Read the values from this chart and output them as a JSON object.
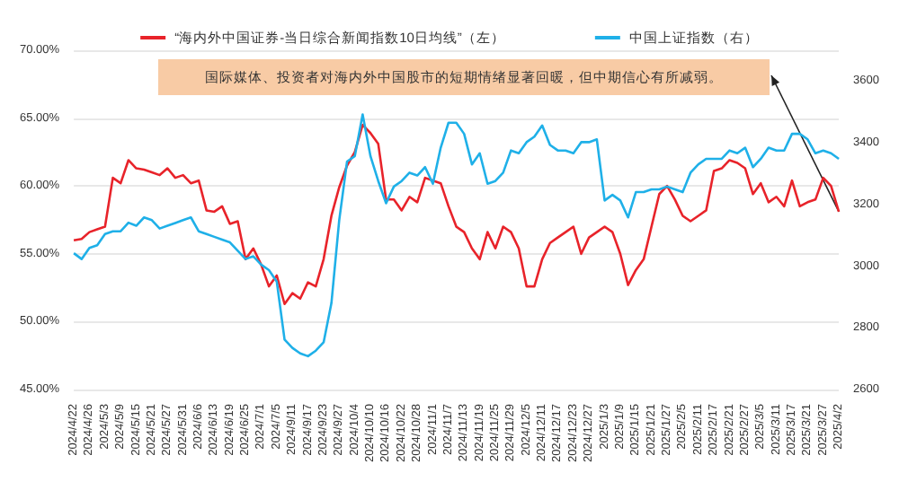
{
  "chart_data": {
    "type": "line",
    "categories": [
      "2024/4/22",
      null,
      "2024/4/26",
      null,
      "2024/5/3",
      null,
      "2024/5/9",
      null,
      "2024/5/15",
      null,
      "2024/5/21",
      null,
      "2024/5/27",
      null,
      "2024/5/31",
      null,
      "2024/6/6",
      null,
      "2024/6/13",
      null,
      "2024/6/19",
      null,
      "2024/6/25",
      null,
      "2024/7/1",
      null,
      "2024/7/5",
      null,
      "2024/9/11",
      null,
      "2024/9/17",
      null,
      "2024/9/23",
      null,
      "2024/9/27",
      null,
      "2024/10/4",
      null,
      "2024/10/10",
      null,
      "2024/10/16",
      null,
      "2024/10/22",
      null,
      "2024/10/28",
      null,
      "2024/11/1",
      null,
      "2024/11/7",
      null,
      "2024/11/13",
      null,
      "2024/11/19",
      null,
      "2024/11/25",
      null,
      "2024/11/29",
      null,
      "2024/12/5",
      null,
      "2024/12/11",
      null,
      "2024/12/17",
      null,
      "2024/12/23",
      null,
      "2024/12/27",
      null,
      "2025/1/3",
      null,
      "2025/1/9",
      null,
      "2025/1/15",
      null,
      "2025/1/21",
      null,
      "2025/1/27",
      null,
      "2025/2/5",
      null,
      "2025/2/11",
      null,
      "2025/2/17",
      null,
      "2025/2/21",
      null,
      "2025/2/27",
      null,
      "2025/3/5",
      null,
      "2025/3/11",
      null,
      "2025/3/17",
      null,
      "2025/3/21",
      null,
      "2025/3/27",
      null,
      "2025/4/2"
    ],
    "series": [
      {
        "name": "“海内外中国证券-当日综合新闻指数10日均线”（左）",
        "color": "#e8232a",
        "values": [
          56.0,
          56.1,
          56.6,
          56.8,
          57.0,
          60.6,
          60.2,
          61.9,
          61.3,
          61.2,
          61.0,
          60.8,
          61.3,
          60.6,
          60.8,
          60.2,
          60.4,
          58.2,
          58.1,
          58.5,
          57.2,
          57.4,
          54.6,
          55.4,
          54.2,
          52.6,
          53.4,
          51.3,
          52.1,
          51.7,
          52.9,
          52.6,
          54.6,
          57.8,
          59.9,
          61.5,
          62.5,
          64.5,
          63.9,
          63.1,
          59.0,
          59.0,
          58.2,
          59.2,
          58.8,
          60.6,
          60.4,
          60.2,
          58.5,
          57.0,
          56.6,
          55.4,
          54.6,
          56.6,
          55.4,
          57.0,
          56.6,
          55.4,
          52.6,
          52.6,
          54.6,
          55.8,
          56.2,
          56.6,
          57.0,
          55.0,
          56.2,
          56.6,
          57.0,
          56.6,
          55.0,
          52.7,
          53.8,
          54.6,
          57.0,
          59.4,
          60.0,
          59.0,
          57.8,
          57.4,
          57.8,
          58.2,
          61.1,
          61.3,
          61.9,
          61.7,
          61.3,
          59.4,
          60.2,
          58.8,
          59.2,
          58.5,
          60.4,
          58.5,
          58.8,
          59.0,
          60.6,
          60.0,
          58.1
        ]
      },
      {
        "name": "中国上证指数（右）",
        "color": "#1fb0e8",
        "axis": "y2",
        "values": [
          3042,
          3023,
          3059,
          3068,
          3104,
          3113,
          3113,
          3141,
          3131,
          3158,
          3149,
          3122,
          3131,
          3140,
          3149,
          3158,
          3113,
          3104,
          3095,
          3086,
          3077,
          3050,
          3023,
          3032,
          3005,
          2987,
          2950,
          2762,
          2735,
          2717,
          2708,
          2726,
          2753,
          2880,
          3149,
          3339,
          3357,
          3492,
          3357,
          3276,
          3204,
          3258,
          3276,
          3303,
          3294,
          3321,
          3267,
          3384,
          3465,
          3465,
          3429,
          3330,
          3366,
          3267,
          3276,
          3303,
          3375,
          3366,
          3402,
          3420,
          3456,
          3393,
          3375,
          3375,
          3366,
          3402,
          3402,
          3411,
          3213,
          3231,
          3213,
          3158,
          3240,
          3240,
          3249,
          3249,
          3258,
          3249,
          3240,
          3303,
          3330,
          3348,
          3348,
          3348,
          3375,
          3366,
          3384,
          3321,
          3348,
          3384,
          3375,
          3375,
          3429,
          3429,
          3411,
          3366,
          3375,
          3366,
          3348
        ]
      }
    ],
    "ylim": [
      45,
      70
    ],
    "yticks": [
      {
        "value": 45,
        "label": "45.00%"
      },
      {
        "value": 50,
        "label": "50.00%"
      },
      {
        "value": 55,
        "label": "55.00%"
      },
      {
        "value": 60,
        "label": "60.00%"
      },
      {
        "value": 65,
        "label": "65.00%"
      },
      {
        "value": 70,
        "label": "70.00%"
      }
    ],
    "y2lim": [
      2600,
      3700
    ],
    "y2ticks": [
      2600,
      2800,
      3000,
      3200,
      3400,
      3600
    ],
    "grid": "y",
    "legend": "top",
    "marker": "none",
    "line_style": "solid",
    "annotations": [
      "国际媒体、投资者对海内外中国股市的短期情绪显著回暖，但中期信心有所减弱。"
    ]
  }
}
